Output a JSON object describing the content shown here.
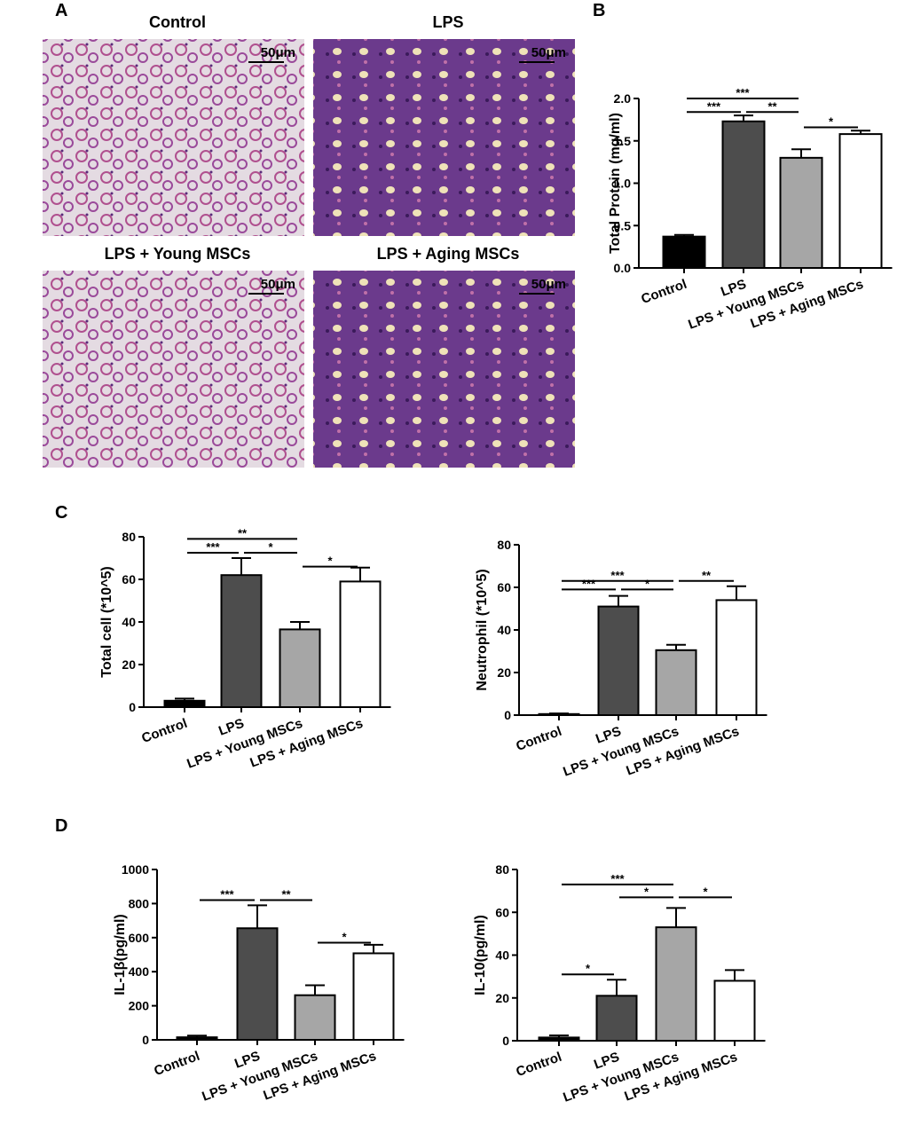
{
  "panel_labels": [
    "A",
    "B",
    "C",
    "D"
  ],
  "images": [
    {
      "title": "Control",
      "scale": "50μm"
    },
    {
      "title": "LPS",
      "scale": "50μm"
    },
    {
      "title": "LPS + Young MSCs",
      "scale": "50μm"
    },
    {
      "title": "LPS + Aging MSCs",
      "scale": "50μm"
    }
  ],
  "chart_data": [
    {
      "type": "bar",
      "ylabel": "Total Protein (mg/ml)",
      "categories": [
        "Control",
        "LPS",
        "LPS + Young MSCs",
        "LPS + Aging MSCs"
      ],
      "values": [
        0.37,
        1.73,
        1.3,
        1.58
      ],
      "errors": [
        0.02,
        0.07,
        0.1,
        0.04
      ],
      "colors": [
        "#000000",
        "#4d4d4d",
        "#a6a6a6",
        "#ffffff"
      ],
      "ylim": [
        0,
        2
      ],
      "yticks": [
        {
          "value": 0,
          "label": "0.0"
        },
        0.5,
        {
          "value": 1,
          "label": "1.0"
        },
        1.5,
        {
          "value": 2,
          "label": "2.0"
        }
      ],
      "brackets": [
        {
          "between": [
            "Control",
            "LPS + Young MSCs"
          ],
          "y": 2.0,
          "label": "***"
        },
        {
          "between": [
            "Control",
            "LPS"
          ],
          "y": 1.84,
          "label": "***"
        },
        {
          "between": [
            "LPS",
            "LPS + Young MSCs"
          ],
          "y": 1.84,
          "label": "**"
        },
        {
          "between": [
            "LPS + Young MSCs",
            "LPS + Aging MSCs"
          ],
          "y": 1.66,
          "label": "*"
        }
      ]
    },
    {
      "type": "bar",
      "ylabel": "Total cell (*10^5)",
      "categories": [
        "Control",
        "LPS",
        "LPS + Young MSCs",
        "LPS + Aging MSCs"
      ],
      "values": [
        3,
        62,
        36.5,
        59
      ],
      "errors": [
        1,
        8,
        3.5,
        6.5
      ],
      "colors": [
        "#000000",
        "#4d4d4d",
        "#a6a6a6",
        "#ffffff"
      ],
      "ylim": [
        0,
        80
      ],
      "yticks": [
        0,
        20,
        40,
        60,
        80
      ],
      "brackets": [
        {
          "between": [
            "Control",
            "LPS + Young MSCs"
          ],
          "y": 79,
          "label": "**"
        },
        {
          "between": [
            "Control",
            "LPS"
          ],
          "y": 72.5,
          "label": "***"
        },
        {
          "between": [
            "LPS",
            "LPS + Young MSCs"
          ],
          "y": 72.5,
          "label": "*"
        },
        {
          "between": [
            "LPS + Young MSCs",
            "LPS + Aging MSCs"
          ],
          "y": 66,
          "label": "*"
        }
      ]
    },
    {
      "type": "bar",
      "ylabel": "Neutrophil (*10^5)",
      "categories": [
        "Control",
        "LPS",
        "LPS + Young MSCs",
        "LPS + Aging MSCs"
      ],
      "values": [
        0.5,
        51,
        30.5,
        54
      ],
      "errors": [
        0.3,
        5,
        2.5,
        6.5
      ],
      "colors": [
        "#000000",
        "#4d4d4d",
        "#a6a6a6",
        "#ffffff"
      ],
      "ylim": [
        0,
        80
      ],
      "yticks": [
        0,
        20,
        40,
        60,
        80
      ],
      "brackets": [
        {
          "between": [
            "Control",
            "LPS + Young MSCs"
          ],
          "y": 63,
          "label": "***"
        },
        {
          "between": [
            "Control",
            "LPS"
          ],
          "y": 59,
          "label": "***"
        },
        {
          "between": [
            "LPS",
            "LPS + Young MSCs"
          ],
          "y": 59,
          "label": "*"
        },
        {
          "between": [
            "LPS + Young MSCs",
            "LPS + Aging MSCs"
          ],
          "y": 63,
          "label": "**"
        }
      ]
    },
    {
      "type": "bar",
      "ylabel": "IL-1β(pg/ml)",
      "categories": [
        "Control",
        "LPS",
        "LPS + Young MSCs",
        "LPS + Aging MSCs"
      ],
      "values": [
        15,
        655,
        262,
        508
      ],
      "errors": [
        10,
        135,
        58,
        50
      ],
      "colors": [
        "#000000",
        "#4d4d4d",
        "#a6a6a6",
        "#ffffff"
      ],
      "ylim": [
        0,
        1000
      ],
      "yticks": [
        0,
        200,
        400,
        600,
        800,
        1000
      ],
      "brackets": [
        {
          "between": [
            "Control",
            "LPS"
          ],
          "y": 820,
          "label": "***"
        },
        {
          "between": [
            "LPS",
            "LPS + Young MSCs"
          ],
          "y": 820,
          "label": "**"
        },
        {
          "between": [
            "LPS + Young MSCs",
            "LPS + Aging MSCs"
          ],
          "y": 570,
          "label": "*"
        }
      ]
    },
    {
      "type": "bar",
      "ylabel": "IL-10(pg/ml)",
      "categories": [
        "Control",
        "LPS",
        "LPS + Young MSCs",
        "LPS + Aging MSCs"
      ],
      "values": [
        1.5,
        21,
        53,
        28
      ],
      "errors": [
        1,
        7.5,
        9,
        5
      ],
      "colors": [
        "#000000",
        "#4d4d4d",
        "#a6a6a6",
        "#ffffff"
      ],
      "ylim": [
        0,
        80
      ],
      "yticks": [
        0,
        20,
        40,
        60,
        80
      ],
      "brackets": [
        {
          "between": [
            "Control",
            "LPS + Young MSCs"
          ],
          "y": 73,
          "label": "***"
        },
        {
          "between": [
            "LPS",
            "LPS + Young MSCs"
          ],
          "y": 67,
          "label": "*"
        },
        {
          "between": [
            "LPS + Young MSCs",
            "LPS + Aging MSCs"
          ],
          "y": 67,
          "label": "*"
        },
        {
          "between": [
            "Control",
            "LPS"
          ],
          "y": 31,
          "label": "*"
        }
      ]
    }
  ]
}
